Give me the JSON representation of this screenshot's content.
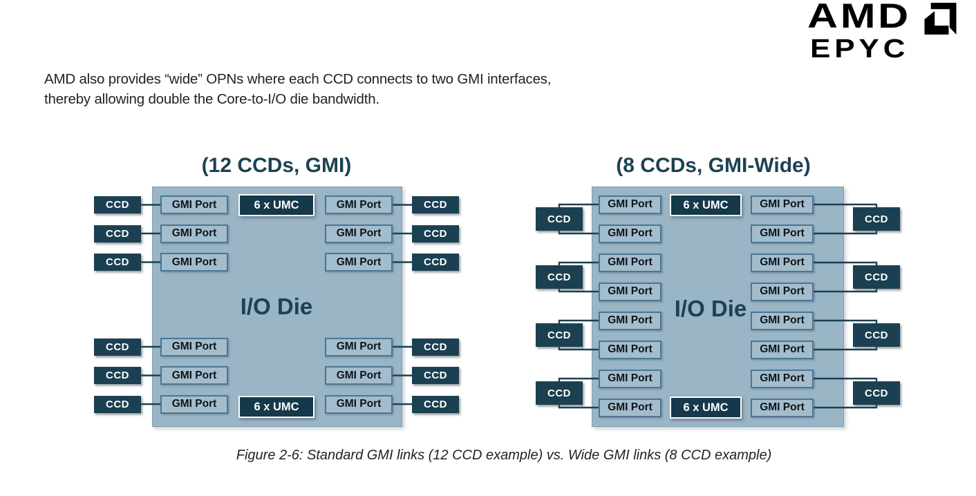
{
  "logo": {
    "brand": "AMD",
    "product": "EPYC"
  },
  "intro": {
    "line1": "AMD also provides “wide” OPNs where each CCD connects to two GMI interfaces,",
    "line2": "thereby allowing double the Core-to-I/O die bandwidth."
  },
  "caption": "Figure 2-6: Standard GMI links (12 CCD example) vs. Wide GMI links (8 CCD example)",
  "colors": {
    "logo": "#000000",
    "dark_text": "#1C4253",
    "die_fill": "#99B5C6",
    "die_border": "#7FA0B2",
    "gmi_fill": "#A3BDCD",
    "gmi_border": "#4C7693",
    "ccd_fill": "#1B4051",
    "umc_fill": "#15394B",
    "connector_line": "#1B4051"
  },
  "diagrams": [
    {
      "title": "(12 CCDs, GMI)",
      "io_die_label": "I/O Die",
      "umc_label": "6 x UMC",
      "gmi_port_label": "GMI Port",
      "ccd_label": "CCD",
      "ccd_count": 12,
      "gmi_port_count": 12,
      "umc_blocks": 2,
      "link_type": "GMI",
      "ccds_per_gmi_port": 1
    },
    {
      "title": "(8 CCDs, GMI-Wide)",
      "io_die_label": "I/O Die",
      "umc_label": "6 x UMC",
      "gmi_port_label": "GMI Port",
      "ccd_label": "CCD",
      "ccd_count": 8,
      "gmi_port_count": 16,
      "umc_blocks": 2,
      "link_type": "GMI-Wide",
      "gmi_ports_per_ccd": 2
    }
  ]
}
